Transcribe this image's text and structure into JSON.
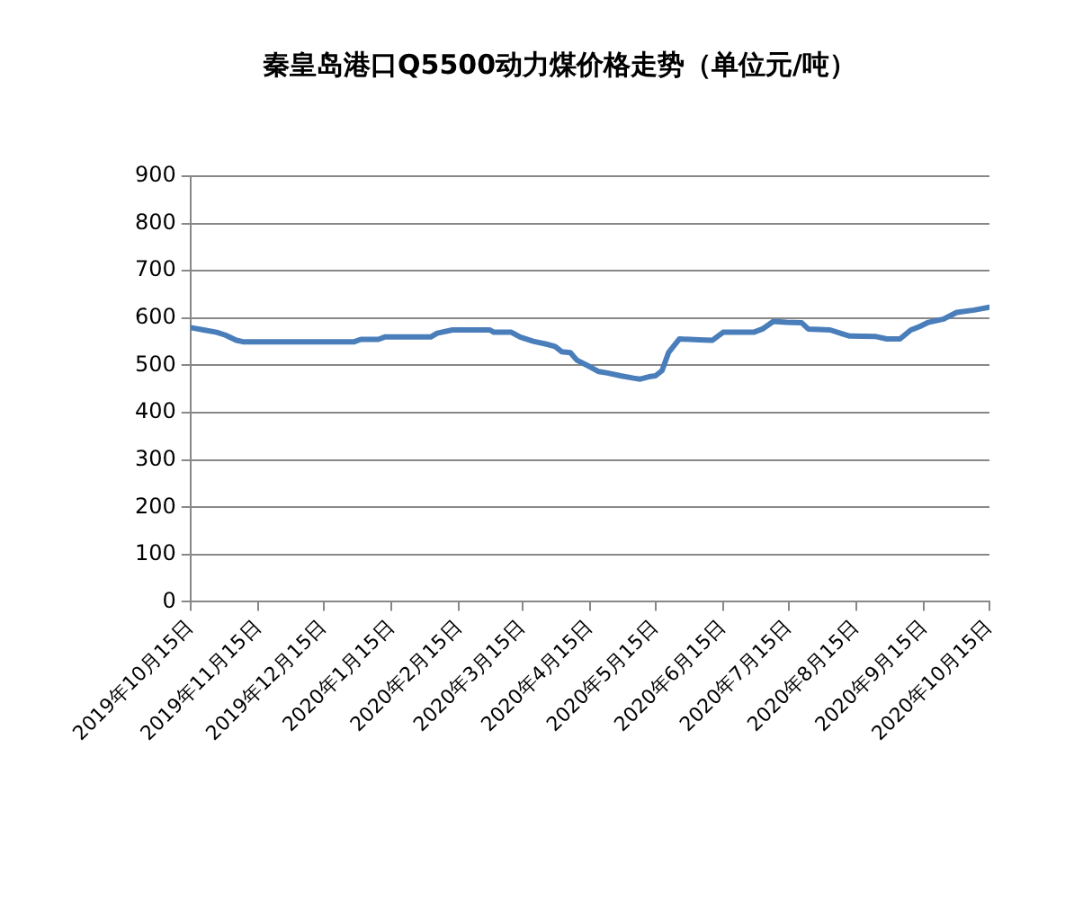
{
  "chart_data": {
    "type": "line",
    "title": "秦皇岛港口Q5500动力煤价格走势（单位元/吨）",
    "x": [
      "2019-10-15",
      "2019-10-21",
      "2019-10-27",
      "2019-10-31",
      "2019-11-05",
      "2019-11-08",
      "2019-12-29",
      "2020-01-01",
      "2020-01-09",
      "2020-01-12",
      "2020-02-02",
      "2020-02-05",
      "2020-02-12",
      "2020-02-29",
      "2020-03-02",
      "2020-03-10",
      "2020-03-14",
      "2020-03-20",
      "2020-03-26",
      "2020-03-30",
      "2020-04-02",
      "2020-04-06",
      "2020-04-09",
      "2020-04-15",
      "2020-04-19",
      "2020-04-23",
      "2020-04-29",
      "2020-05-05",
      "2020-05-08",
      "2020-05-12",
      "2020-05-15",
      "2020-05-18",
      "2020-05-21",
      "2020-05-26",
      "2020-06-04",
      "2020-06-10",
      "2020-06-15",
      "2020-06-29",
      "2020-07-03",
      "2020-07-08",
      "2020-07-14",
      "2020-07-21",
      "2020-07-24",
      "2020-08-03",
      "2020-08-09",
      "2020-08-12",
      "2020-08-24",
      "2020-08-29",
      "2020-09-04",
      "2020-09-09",
      "2020-09-13",
      "2020-09-17",
      "2020-09-24",
      "2020-09-30",
      "2020-10-08",
      "2020-10-15"
    ],
    "values": [
      580,
      575,
      570,
      564,
      553,
      550,
      550,
      555,
      555,
      560,
      560,
      568,
      575,
      575,
      570,
      570,
      560,
      551,
      545,
      540,
      529,
      527,
      511,
      497,
      487,
      484,
      478,
      473,
      471,
      476,
      478,
      489,
      527,
      556,
      554,
      553,
      570,
      570,
      577,
      593,
      591,
      590,
      577,
      575,
      566,
      562,
      561,
      556,
      556,
      575,
      582,
      591,
      598,
      612,
      617,
      623
    ],
    "color": "#4a7ebb",
    "xlim": [
      "2019-10-15",
      "2020-10-15"
    ],
    "xticks": [
      {
        "value": "2019-10-15",
        "label": "2019年10月15日"
      },
      {
        "value": "2019-11-15",
        "label": "2019年11月15日"
      },
      {
        "value": "2019-12-15",
        "label": "2019年12月15日"
      },
      {
        "value": "2020-01-15",
        "label": "2020年1月15日"
      },
      {
        "value": "2020-02-15",
        "label": "2020年2月15日"
      },
      {
        "value": "2020-03-15",
        "label": "2020年3月15日"
      },
      {
        "value": "2020-04-15",
        "label": "2020年4月15日"
      },
      {
        "value": "2020-05-15",
        "label": "2020年5月15日"
      },
      {
        "value": "2020-06-15",
        "label": "2020年6月15日"
      },
      {
        "value": "2020-07-15",
        "label": "2020年7月15日"
      },
      {
        "value": "2020-08-15",
        "label": "2020年8月15日"
      },
      {
        "value": "2020-09-15",
        "label": "2020年9月15日"
      },
      {
        "value": "2020-10-15",
        "label": "2020年10月15日"
      }
    ],
    "ylim": [
      0,
      900
    ],
    "yticks": [
      0,
      100,
      200,
      300,
      400,
      500,
      600,
      700,
      800,
      900
    ],
    "grid": "y",
    "legend": false,
    "marker": "none",
    "line_style": "solid"
  }
}
